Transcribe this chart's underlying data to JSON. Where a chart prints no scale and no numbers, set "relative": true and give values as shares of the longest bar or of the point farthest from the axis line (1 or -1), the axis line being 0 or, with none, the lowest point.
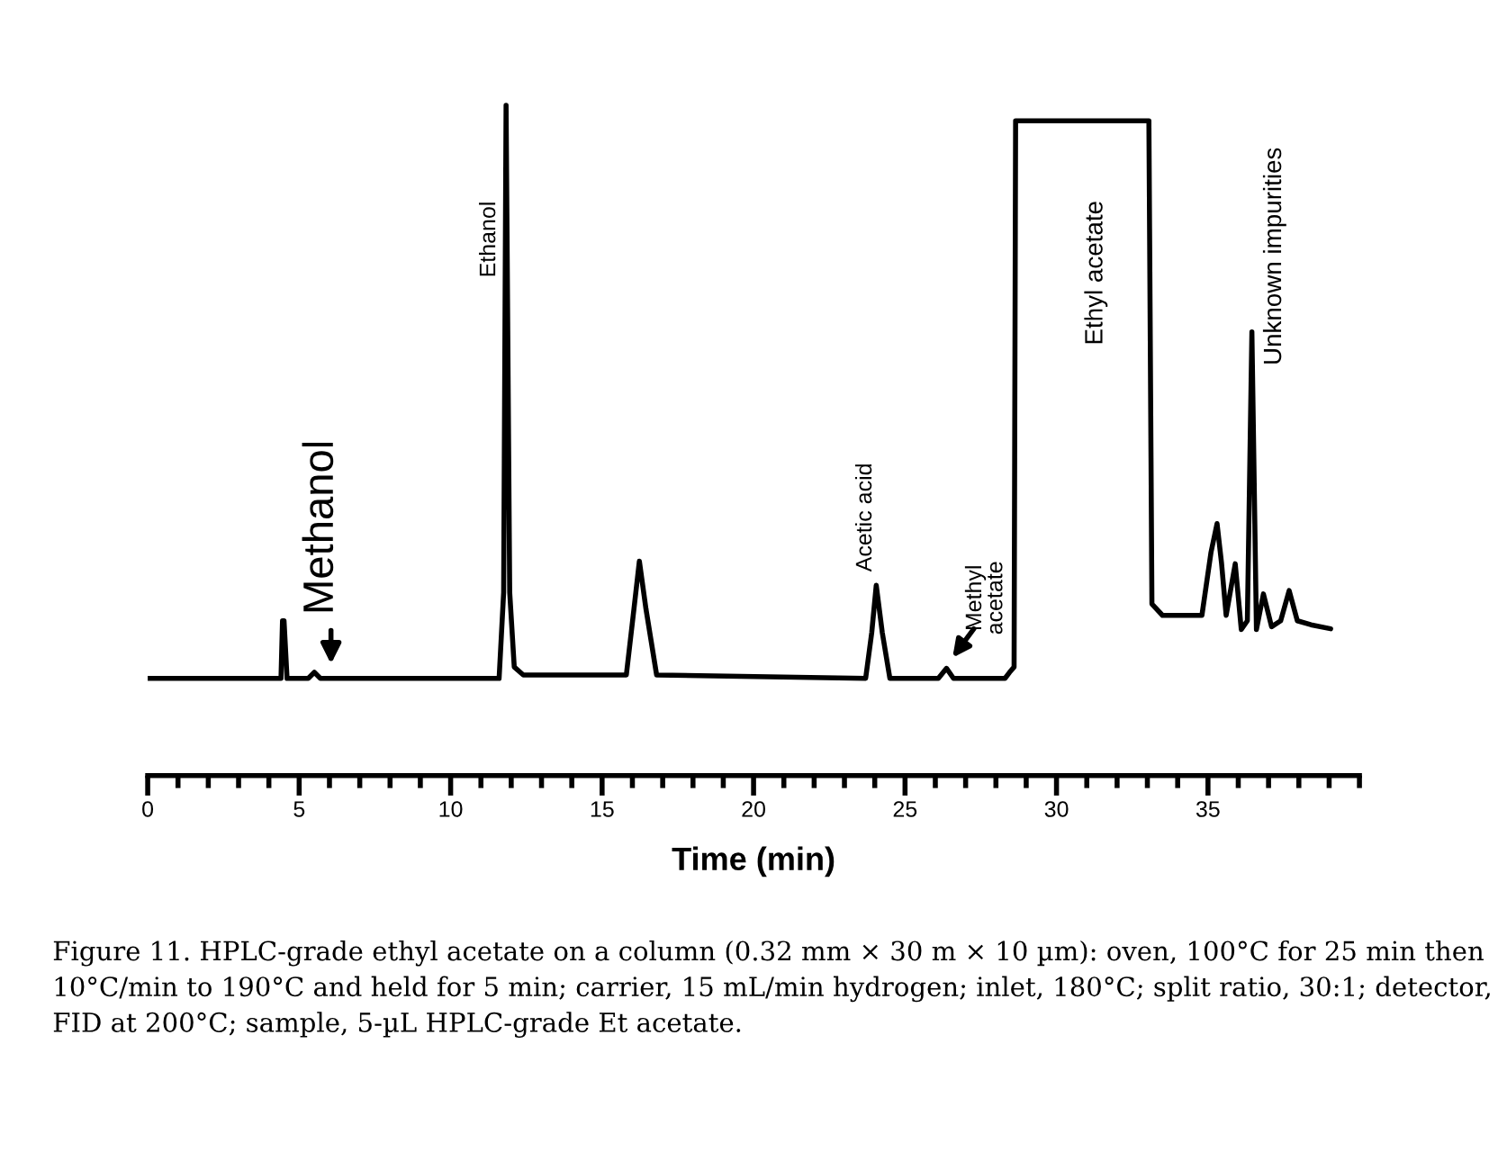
{
  "chart_data": {
    "type": "line",
    "relative": true,
    "xlabel": "Time (min)",
    "xlim": [
      0,
      40
    ],
    "xticks": [
      0,
      {
        "value": 1,
        "label": null
      },
      {
        "value": 2,
        "label": null
      },
      {
        "value": 3,
        "label": null
      },
      {
        "value": 4,
        "label": null
      },
      5,
      {
        "value": 6,
        "label": null
      },
      {
        "value": 7,
        "label": null
      },
      {
        "value": 8,
        "label": null
      },
      {
        "value": 9,
        "label": null
      },
      10,
      {
        "value": 11,
        "label": null
      },
      {
        "value": 12,
        "label": null
      },
      {
        "value": 13,
        "label": null
      },
      {
        "value": 14,
        "label": null
      },
      15,
      {
        "value": 16,
        "label": null
      },
      {
        "value": 17,
        "label": null
      },
      {
        "value": 18,
        "label": null
      },
      {
        "value": 19,
        "label": null
      },
      20,
      {
        "value": 21,
        "label": null
      },
      {
        "value": 22,
        "label": null
      },
      {
        "value": 23,
        "label": null
      },
      {
        "value": 24,
        "label": null
      },
      25,
      {
        "value": 26,
        "label": null
      },
      {
        "value": 27,
        "label": null
      },
      {
        "value": 28,
        "label": null
      },
      {
        "value": 29,
        "label": null
      },
      30,
      {
        "value": 31,
        "label": null
      },
      {
        "value": 32,
        "label": null
      },
      {
        "value": 33,
        "label": null
      },
      {
        "value": 34,
        "label": null
      },
      35,
      {
        "value": 36,
        "label": null
      },
      {
        "value": 37,
        "label": null
      },
      {
        "value": 38,
        "label": null
      },
      {
        "value": 39,
        "label": null
      },
      {
        "value": 40,
        "label": null
      }
    ],
    "series": [
      {
        "color": "#000000",
        "x": [
          0.0,
          4.4,
          4.45,
          4.5,
          4.6,
          5.3,
          5.5,
          5.7,
          11.6,
          11.75,
          11.83,
          11.95,
          12.1,
          12.4,
          15.8,
          16.05,
          16.23,
          16.45,
          16.8,
          23.7,
          23.9,
          24.05,
          24.25,
          24.5,
          26.1,
          26.37,
          26.6,
          28.3,
          28.45,
          28.6,
          28.65,
          33.05,
          33.15,
          33.5,
          34.8,
          35.1,
          35.3,
          35.45,
          35.6,
          35.9,
          36.1,
          36.3,
          36.45,
          36.6,
          36.83,
          37.1,
          37.4,
          37.68,
          37.95,
          38.4,
          39.05
        ],
        "values": [
          0.145,
          0.145,
          0.231,
          0.231,
          0.145,
          0.145,
          0.154,
          0.145,
          0.145,
          0.273,
          1.0,
          0.273,
          0.162,
          0.15,
          0.15,
          0.248,
          0.32,
          0.248,
          0.15,
          0.145,
          0.213,
          0.284,
          0.213,
          0.145,
          0.145,
          0.16,
          0.145,
          0.145,
          0.154,
          0.162,
          0.977,
          0.977,
          0.256,
          0.239,
          0.239,
          0.333,
          0.376,
          0.316,
          0.239,
          0.316,
          0.218,
          0.231,
          0.662,
          0.218,
          0.271,
          0.222,
          0.231,
          0.276,
          0.231,
          0.225,
          0.219
        ]
      }
    ],
    "annotations": [
      {
        "text": "Methanol",
        "x": 5.5,
        "y": 0.154
      },
      {
        "text": "Ethanol",
        "x": 11.83,
        "y": 0.8
      },
      {
        "text": "Acetic acid",
        "x": 24.05,
        "y": 0.284
      },
      {
        "text": "Methyl\nacetate",
        "x": 26.37,
        "y": 0.16
      },
      {
        "text": "Ethyl acetate",
        "x": 33.05,
        "y": 0.75
      },
      {
        "text": "Unknown impurities",
        "x": 36.45,
        "y": 0.662
      },
      "Figure 11. HPLC-grade ethyl acetate on a column (0.32 mm × 30 m × 10 µm): oven, 100°C for 25 min then 10°C/min to 190°C and held for 5 min; carrier, 15 mL/min hydrogen; inlet, 180°C; split ratio, 30:1; detector, FID at 200°C; sample, 5-µL HPLC-grade Et acetate."
    ]
  }
}
